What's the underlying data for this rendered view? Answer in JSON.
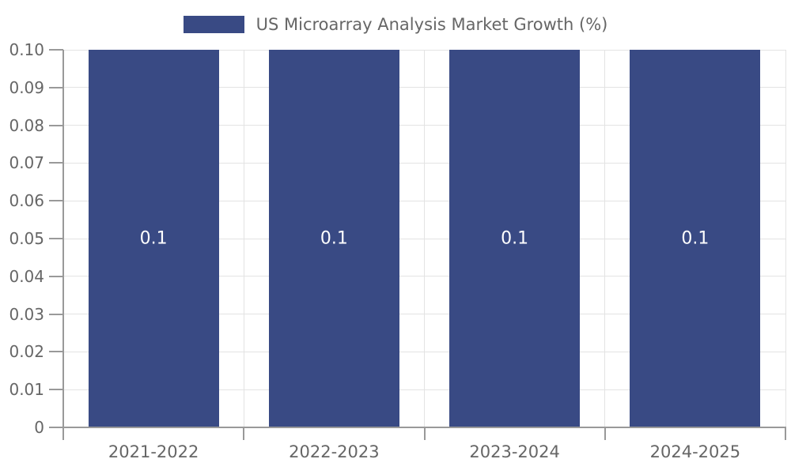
{
  "chart_data": {
    "type": "bar",
    "title": "US Microarray Analysis Market Growth (%)",
    "categories": [
      "2021-2022",
      "2022-2023",
      "2023-2024",
      "2024-2025"
    ],
    "values": [
      0.1,
      0.1,
      0.1,
      0.1
    ],
    "bar_labels": [
      "0.1",
      "0.1",
      "0.1",
      "0.1"
    ],
    "series": [
      {
        "name": "US Microarray Analysis Market Growth (%)",
        "values": [
          0.1,
          0.1,
          0.1,
          0.1
        ]
      }
    ],
    "ylim": [
      0,
      0.1
    ],
    "y_ticks": [
      {
        "value": 0.0,
        "label": "0"
      },
      {
        "value": 0.01,
        "label": "0.01"
      },
      {
        "value": 0.02,
        "label": "0.02"
      },
      {
        "value": 0.03,
        "label": "0.03"
      },
      {
        "value": 0.04,
        "label": "0.04"
      },
      {
        "value": 0.05,
        "label": "0.05"
      },
      {
        "value": 0.06,
        "label": "0.06"
      },
      {
        "value": 0.07,
        "label": "0.07"
      },
      {
        "value": 0.08,
        "label": "0.08"
      },
      {
        "value": 0.09,
        "label": "0.09"
      },
      {
        "value": 0.1,
        "label": "0.10"
      }
    ],
    "xlabel": "",
    "ylabel": "",
    "grid": true,
    "legend_position": "top",
    "colors": {
      "bar": "#394a84",
      "grid": "#e3e3e3",
      "axis": "#999999",
      "text": "#666666",
      "bar_label": "#ffffff",
      "bg": "#ffffff"
    }
  }
}
